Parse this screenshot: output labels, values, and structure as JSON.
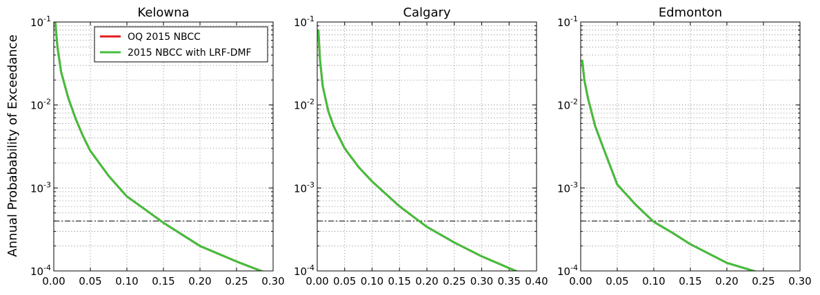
{
  "figure": {
    "ylabel": "Annual Probabability of Exceedance"
  },
  "legend": {
    "entries": [
      {
        "label": "OQ 2015 NBCC",
        "color": "#e31a1c"
      },
      {
        "label": "2015 NBCC with LRF-DMF",
        "color": "#41bf3c"
      }
    ]
  },
  "y_ticks": [
    {
      "base": "10",
      "exp": "-1",
      "value": 0.1
    },
    {
      "base": "10",
      "exp": "-2",
      "value": 0.01
    },
    {
      "base": "10",
      "exp": "-3",
      "value": 0.001
    },
    {
      "base": "10",
      "exp": "-4",
      "value": 0.0001
    }
  ],
  "reference_level": 0.0004,
  "chart_data": [
    {
      "type": "line",
      "title": "Kelowna",
      "yscale": "log",
      "xlim": [
        0,
        0.3
      ],
      "ylim": [
        0.0001,
        0.1
      ],
      "xticks": [
        "0.00",
        "0.05",
        "0.10",
        "0.15",
        "0.20",
        "0.25",
        "0.30"
      ],
      "grid": true,
      "legend_position": "top-right",
      "series": [
        {
          "name": "OQ 2015 NBCC",
          "color": "#e31a1c",
          "x": [
            0.002,
            0.005,
            0.01,
            0.02,
            0.03,
            0.04,
            0.05,
            0.075,
            0.1,
            0.125,
            0.15,
            0.2,
            0.25,
            0.29
          ],
          "y": [
            0.1,
            0.05,
            0.025,
            0.012,
            0.0068,
            0.0042,
            0.0028,
            0.0014,
            0.00079,
            0.00055,
            0.00038,
            0.0002,
            0.00013,
            9.5e-05
          ]
        },
        {
          "name": "2015 NBCC with LRF-DMF",
          "color": "#41bf3c",
          "x": [
            0.002,
            0.005,
            0.01,
            0.02,
            0.03,
            0.04,
            0.05,
            0.075,
            0.1,
            0.125,
            0.15,
            0.2,
            0.25,
            0.29
          ],
          "y": [
            0.1,
            0.05,
            0.025,
            0.012,
            0.0068,
            0.0042,
            0.0028,
            0.0014,
            0.00079,
            0.00055,
            0.00038,
            0.0002,
            0.00013,
            9.5e-05
          ]
        }
      ]
    },
    {
      "type": "line",
      "title": "Calgary",
      "yscale": "log",
      "xlim": [
        0,
        0.4
      ],
      "ylim": [
        0.0001,
        0.1
      ],
      "xticks": [
        "0.00",
        "0.05",
        "0.10",
        "0.15",
        "0.20",
        "0.25",
        "0.30",
        "0.35",
        "0.40"
      ],
      "grid": true,
      "series": [
        {
          "name": "OQ 2015 NBCC",
          "color": "#e31a1c",
          "x": [
            0.002,
            0.005,
            0.01,
            0.02,
            0.03,
            0.05,
            0.075,
            0.1,
            0.15,
            0.2,
            0.25,
            0.3,
            0.37
          ],
          "y": [
            0.08,
            0.035,
            0.017,
            0.0085,
            0.0055,
            0.003,
            0.0018,
            0.0012,
            0.0006,
            0.00034,
            0.00022,
            0.00015,
            9.5e-05
          ]
        },
        {
          "name": "2015 NBCC with LRF-DMF",
          "color": "#41bf3c",
          "x": [
            0.002,
            0.005,
            0.01,
            0.02,
            0.03,
            0.05,
            0.075,
            0.1,
            0.15,
            0.2,
            0.25,
            0.3,
            0.37
          ],
          "y": [
            0.08,
            0.035,
            0.017,
            0.0085,
            0.0055,
            0.003,
            0.0018,
            0.0012,
            0.0006,
            0.00034,
            0.00022,
            0.00015,
            9.5e-05
          ]
        }
      ]
    },
    {
      "type": "line",
      "title": "Edmonton",
      "yscale": "log",
      "xlim": [
        0,
        0.3
      ],
      "ylim": [
        0.0001,
        0.1
      ],
      "xticks": [
        "0.00",
        "0.05",
        "0.10",
        "0.15",
        "0.20",
        "0.25",
        "0.30"
      ],
      "grid": true,
      "series": [
        {
          "name": "OQ 2015 NBCC",
          "color": "#e31a1c",
          "x": [
            0.002,
            0.005,
            0.01,
            0.02,
            0.03,
            0.05,
            0.075,
            0.1,
            0.125,
            0.15,
            0.2,
            0.245
          ],
          "y": [
            0.035,
            0.02,
            0.012,
            0.0055,
            0.0032,
            0.0011,
            0.00063,
            0.00039,
            0.00029,
            0.00021,
            0.000125,
            9.5e-05
          ]
        },
        {
          "name": "2015 NBCC with LRF-DMF",
          "color": "#41bf3c",
          "x": [
            0.002,
            0.005,
            0.01,
            0.02,
            0.03,
            0.05,
            0.075,
            0.1,
            0.125,
            0.15,
            0.2,
            0.245
          ],
          "y": [
            0.035,
            0.02,
            0.012,
            0.0055,
            0.0032,
            0.0011,
            0.00063,
            0.00039,
            0.00029,
            0.00021,
            0.000125,
            9.5e-05
          ]
        }
      ]
    }
  ]
}
